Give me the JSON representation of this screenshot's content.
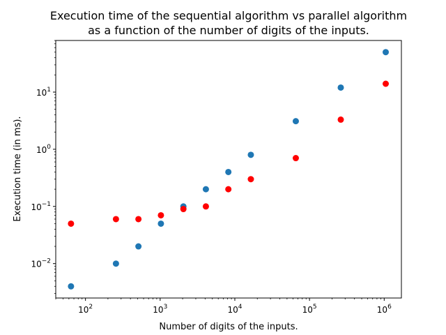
{
  "chart_data": {
    "type": "scatter",
    "title_lines": [
      "Execution time of the sequential algorithm vs parallel algorithm",
      "as a function of the number of digits of the inputs."
    ],
    "xlabel": "Number of digits of the inputs.",
    "ylabel": "Execution time (in ms).",
    "x_scale": "log",
    "y_scale": "log",
    "xlim": [
      40,
      1700000
    ],
    "ylim": [
      0.0025,
      80
    ],
    "x_ticks": [
      {
        "base": "10",
        "exp": "2",
        "value": 100
      },
      {
        "base": "10",
        "exp": "3",
        "value": 1000
      },
      {
        "base": "10",
        "exp": "4",
        "value": 10000
      },
      {
        "base": "10",
        "exp": "5",
        "value": 100000
      },
      {
        "base": "10",
        "exp": "6",
        "value": 1000000
      }
    ],
    "y_ticks": [
      {
        "base": "10",
        "exp": "−2",
        "value": 0.01
      },
      {
        "base": "10",
        "exp": "−1",
        "value": 0.1
      },
      {
        "base": "10",
        "exp": "0",
        "value": 1
      },
      {
        "base": "10",
        "exp": "1",
        "value": 10
      }
    ],
    "grid": false,
    "legend": "none",
    "series": [
      {
        "color": "#1f77b4",
        "x": [
          64,
          256,
          512,
          1024,
          2048,
          4096,
          8192,
          16384,
          65536,
          262144,
          1048576
        ],
        "y": [
          0.004,
          0.01,
          0.02,
          0.05,
          0.1,
          0.2,
          0.4,
          0.8,
          3.1,
          12,
          50
        ]
      },
      {
        "color": "#ff0000",
        "x": [
          64,
          256,
          512,
          1024,
          2048,
          4096,
          8192,
          16384,
          65536,
          262144,
          1048576
        ],
        "y": [
          0.05,
          0.06,
          0.06,
          0.07,
          0.09,
          0.1,
          0.2,
          0.3,
          0.7,
          3.3,
          14
        ]
      }
    ]
  }
}
